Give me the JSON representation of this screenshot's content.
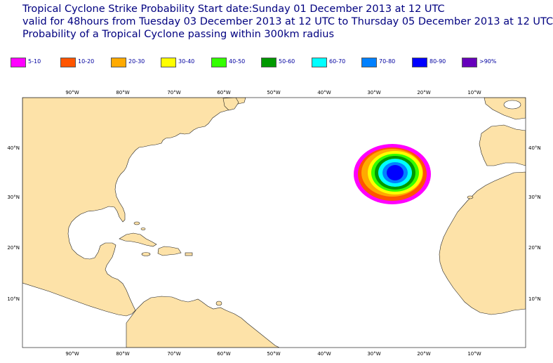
{
  "header": {
    "line1": "Tropical Cyclone Strike Probability Start date:Sunday 01 December 2013 at 12 UTC",
    "line2": "valid for 48hours from Tuesday 03 December 2013 at 12 UTC to  Thursday 05 December 2013 at 12 UTC",
    "line3": "Probability of a Tropical Cyclone passing within 300km radius"
  },
  "legend": [
    {
      "label": "5-10",
      "color": "#ff00ff"
    },
    {
      "label": "10-20",
      "color": "#ff5500"
    },
    {
      "label": "20-30",
      "color": "#ffaa00"
    },
    {
      "label": "30-40",
      "color": "#ffff00"
    },
    {
      "label": "40-50",
      "color": "#33ff00"
    },
    {
      "label": "50-60",
      "color": "#009900"
    },
    {
      "label": "60-70",
      "color": "#00ffff"
    },
    {
      "label": "70-80",
      "color": "#0080ff"
    },
    {
      "label": "80-90",
      "color": "#0000ff"
    },
    {
      "label": ">90%",
      "color": "#6600bb"
    }
  ],
  "map": {
    "land_color": "#fde2a8",
    "ocean_color": "#ffffff",
    "lon_labels": [
      "90°W",
      "80°W",
      "70°W",
      "60°W",
      "50°W",
      "40°W",
      "30°W",
      "20°W",
      "10°W"
    ],
    "lat_labels": [
      "40°N",
      "30°N",
      "20°N",
      "10°N"
    ]
  }
}
